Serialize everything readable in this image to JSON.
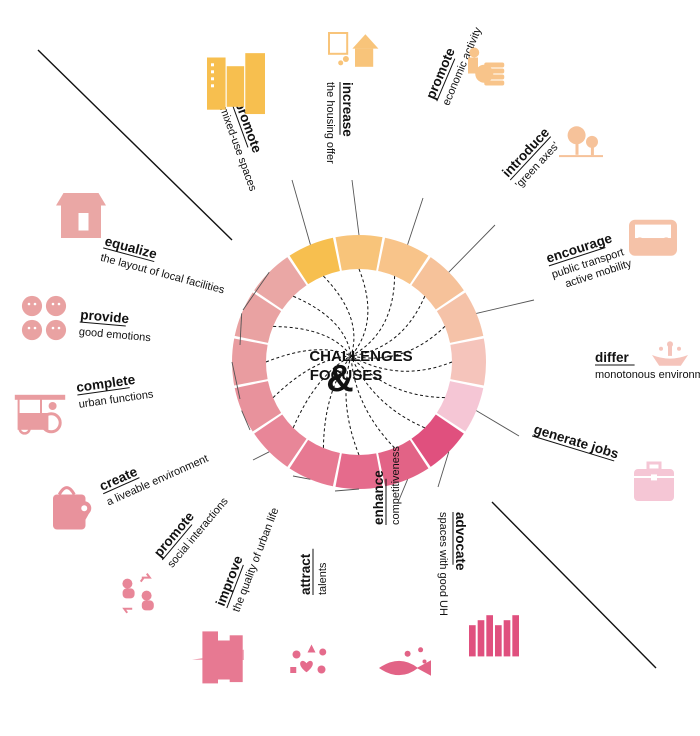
{
  "center": {
    "line1": "CHALLENGES",
    "amp": "&",
    "line2": "FOCUSES"
  },
  "focuses": [
    {
      "id": "mixed-use",
      "verb": "promote",
      "desc": [
        "mixed-use spaces"
      ],
      "color": "#f7bf4f",
      "icon": "buildings-icon"
    },
    {
      "id": "housing",
      "verb": "increase",
      "desc": [
        "the housing offer"
      ],
      "color": "#f8c47a",
      "icon": "house-calendar-icon"
    },
    {
      "id": "economic",
      "verb": "promote",
      "desc": [
        "economic activity"
      ],
      "color": "#f8c48a",
      "icon": "coins-person-icon"
    },
    {
      "id": "green-axes",
      "verb": "introduce",
      "desc": [
        "'green axes'"
      ],
      "color": "#f6c29a",
      "icon": "trees-icon"
    },
    {
      "id": "transport",
      "verb": "encourage",
      "desc": [
        "public transport",
        "active mobility"
      ],
      "color": "#f5c2a8",
      "icon": "bus-icon"
    },
    {
      "id": "monotonous",
      "verb": "differ",
      "desc": [
        "monotonous environment"
      ],
      "color": "#f5c4bb",
      "icon": "fountain-icon"
    },
    {
      "id": "jobs",
      "verb": "generate jobs",
      "desc": [],
      "color": "#f5c6d5",
      "icon": "briefcase-icon"
    },
    {
      "id": "spaces",
      "verb": "advocate",
      "desc": [
        "spaces with good UH"
      ],
      "color": "#e0507e",
      "icon": "skyline-icon"
    },
    {
      "id": "competitive",
      "verb": "enhance",
      "desc": [
        "competitiveness"
      ],
      "color": "#e26386",
      "icon": "fish-icon"
    },
    {
      "id": "talents",
      "verb": "attract",
      "desc": [
        "talents"
      ],
      "color": "#e56b8c",
      "icon": "shapes-icon"
    },
    {
      "id": "quality",
      "verb": "improve",
      "desc": [
        "the quality of urban life"
      ],
      "color": "#e77992",
      "icon": "city-icon"
    },
    {
      "id": "social",
      "verb": "promote",
      "desc": [
        "social interactions"
      ],
      "color": "#e88698",
      "icon": "people-icon"
    },
    {
      "id": "liveable",
      "verb": "create",
      "desc": [
        "a liveable environment"
      ],
      "color": "#e8929c",
      "icon": "bag-pin-icon"
    },
    {
      "id": "urban-functions",
      "verb": "complete",
      "desc": [
        "urban functions"
      ],
      "color": "#e99ca0",
      "icon": "food-cart-icon"
    },
    {
      "id": "emotions",
      "verb": "provide",
      "desc": [
        "good emotions"
      ],
      "color": "#e9a2a2",
      "icon": "smileys-icon"
    },
    {
      "id": "local-facilities",
      "verb": "equalize",
      "desc": [
        "the layout of local facilities"
      ],
      "color": "#eaa7a5",
      "icon": "shop-icon"
    }
  ]
}
